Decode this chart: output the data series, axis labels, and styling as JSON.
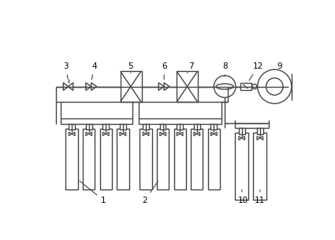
{
  "bg_color": "#ffffff",
  "line_color": "#444444",
  "lw": 1.0,
  "fig_width": 4.25,
  "fig_height": 3.04,
  "dpi": 100
}
